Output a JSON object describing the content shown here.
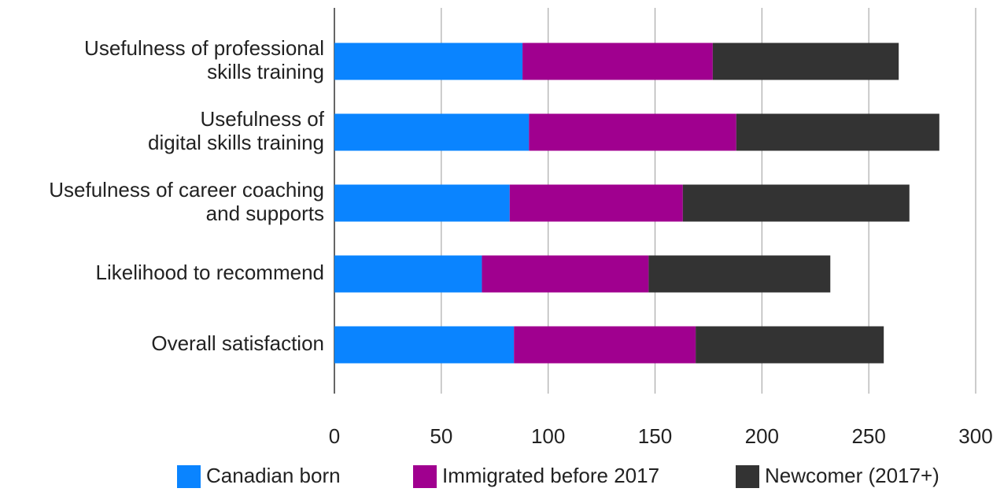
{
  "chart_data": {
    "type": "stacked_barh",
    "categories": [
      [
        "Usefulness of professional",
        "skills training"
      ],
      [
        "Usefulness of",
        "digital skills training"
      ],
      [
        "Usefulness of career coaching",
        "and supports"
      ],
      [
        "Likelihood to recommend"
      ],
      [
        "Overall satisfaction"
      ]
    ],
    "series": [
      {
        "name": "Canadian born",
        "color": "#0a84ff",
        "values": [
          88,
          91,
          82,
          69,
          84
        ]
      },
      {
        "name": "Immigrated before 2017",
        "color": "#a0008f",
        "values": [
          89,
          97,
          81,
          78,
          85
        ]
      },
      {
        "name": "Newcomer (2017+)",
        "color": "#333333",
        "values": [
          87,
          95,
          106,
          85,
          88
        ]
      }
    ],
    "xlim": [
      0,
      300
    ],
    "xticks": [
      0,
      50,
      100,
      150,
      200,
      250,
      300
    ],
    "grid": true,
    "legend": "bottom"
  }
}
